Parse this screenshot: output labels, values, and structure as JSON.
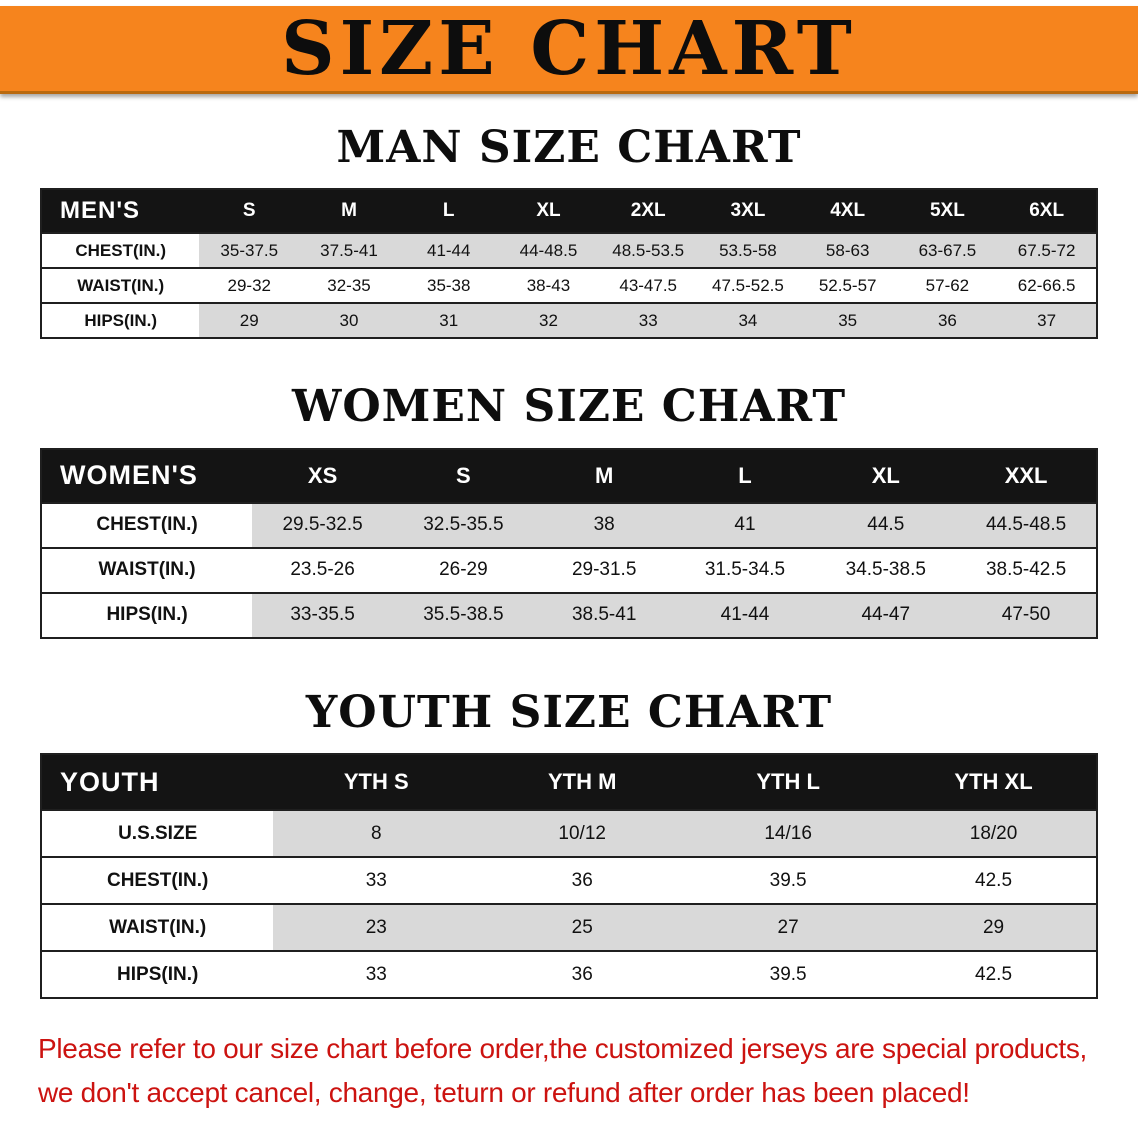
{
  "banner": {
    "title": "SIZE CHART"
  },
  "headings": {
    "men": "MAN SIZE CHART",
    "women": "WOMEN SIZE CHART",
    "youth": "YOUTH SIZE CHART"
  },
  "chart_data": [
    {
      "type": "table",
      "title": "MEN'S",
      "columns": [
        "S",
        "M",
        "L",
        "XL",
        "2XL",
        "3XL",
        "4XL",
        "5XL",
        "6XL"
      ],
      "rows": [
        {
          "label": "CHEST(IN.)",
          "values": [
            "35-37.5",
            "37.5-41",
            "41-44",
            "44-48.5",
            "48.5-53.5",
            "53.5-58",
            "58-63",
            "63-67.5",
            "67.5-72"
          ]
        },
        {
          "label": "WAIST(IN.)",
          "values": [
            "29-32",
            "32-35",
            "35-38",
            "38-43",
            "43-47.5",
            "47.5-52.5",
            "52.5-57",
            "57-62",
            "62-66.5"
          ]
        },
        {
          "label": "HIPS(IN.)",
          "values": [
            "29",
            "30",
            "31",
            "32",
            "33",
            "34",
            "35",
            "36",
            "37"
          ]
        }
      ]
    },
    {
      "type": "table",
      "title": "WOMEN'S",
      "columns": [
        "XS",
        "S",
        "M",
        "L",
        "XL",
        "XXL"
      ],
      "rows": [
        {
          "label": "CHEST(IN.)",
          "values": [
            "29.5-32.5",
            "32.5-35.5",
            "38",
            "41",
            "44.5",
            "44.5-48.5"
          ]
        },
        {
          "label": "WAIST(IN.)",
          "values": [
            "23.5-26",
            "26-29",
            "29-31.5",
            "31.5-34.5",
            "34.5-38.5",
            "38.5-42.5"
          ]
        },
        {
          "label": "HIPS(IN.)",
          "values": [
            "33-35.5",
            "35.5-38.5",
            "38.5-41",
            "41-44",
            "44-47",
            "47-50"
          ]
        }
      ]
    },
    {
      "type": "table",
      "title": "YOUTH",
      "columns": [
        "YTH S",
        "YTH M",
        "YTH L",
        "YTH XL"
      ],
      "rows": [
        {
          "label": "U.S.SIZE",
          "values": [
            "8",
            "10/12",
            "14/16",
            "18/20"
          ]
        },
        {
          "label": "CHEST(IN.)",
          "values": [
            "33",
            "36",
            "39.5",
            "42.5"
          ]
        },
        {
          "label": "WAIST(IN.)",
          "values": [
            "23",
            "25",
            "27",
            "29"
          ]
        },
        {
          "label": "HIPS(IN.)",
          "values": [
            "33",
            "36",
            "39.5",
            "42.5"
          ]
        }
      ]
    }
  ],
  "disclaimer": {
    "line1": "Please refer to our size chart before order,the customized jerseys are special products,",
    "line2": "we don't accept cancel, change, teturn or refund after order has been placed!"
  },
  "colors": {
    "banner": "#f6841d",
    "banner-edge": "#b9690f",
    "header-bg": "#141414",
    "header-text": "#ffffff",
    "row-alt": "#d9d9d9",
    "line": "#1f1f1f",
    "heading": "#0d0d0d",
    "warning": "#cc1310"
  }
}
